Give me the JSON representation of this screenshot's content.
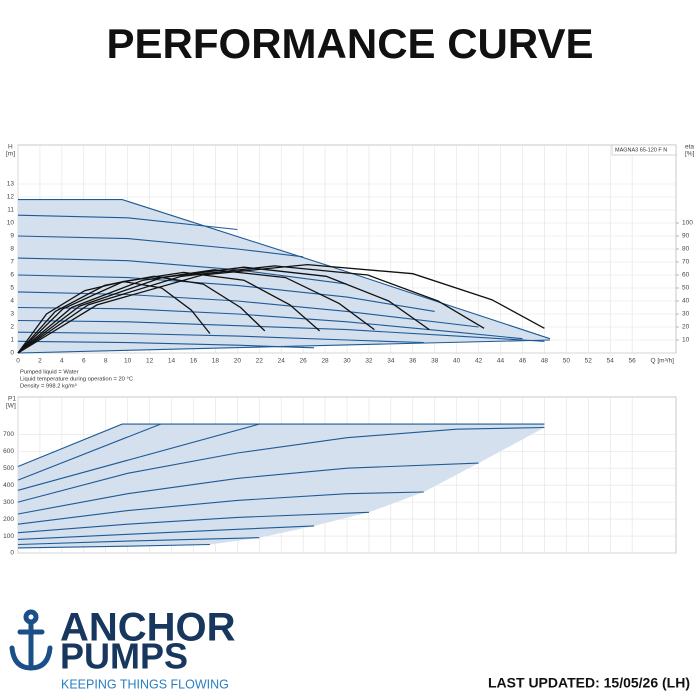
{
  "title": "PERFORMANCE CURVE",
  "chart_data": [
    {
      "type": "line",
      "ylabel": "H",
      "yunit": "[m]",
      "y2label": "eta",
      "y2unit": "[%]",
      "xlabel": "Q [m³/h]",
      "model": "MAGNA3 65-120 F N",
      "annotations": [
        "Pumped liquid = Water",
        "Liquid temperature during operation = 20 °C",
        "Density = 998.2 kg/m³"
      ],
      "xlim": [
        0,
        60
      ],
      "ylim": [
        0,
        16
      ],
      "y2lim": [
        0,
        160
      ],
      "grid": true,
      "xticks": [
        0,
        2,
        4,
        6,
        8,
        10,
        12,
        14,
        16,
        18,
        20,
        22,
        24,
        26,
        28,
        30,
        32,
        34,
        36,
        38,
        40,
        42,
        44,
        46,
        48,
        50,
        52,
        54,
        56
      ],
      "yticks": [
        0,
        1,
        2,
        3,
        4,
        5,
        6,
        7,
        8,
        9,
        10,
        11,
        12,
        13
      ],
      "y2ticks": [
        10,
        20,
        30,
        40,
        50,
        60,
        70,
        80,
        90,
        100
      ],
      "series": [
        {
          "color": "#1f5a96",
          "x": [
            0,
            9.5,
            28,
            48.5
          ],
          "values": [
            11.8,
            11.8,
            6.8,
            1.1
          ]
        },
        {
          "color": "#1f5a96",
          "x": [
            0,
            48.5
          ],
          "values": [
            0,
            1.0
          ]
        },
        {
          "color": "#1f5a96",
          "x": [
            0,
            10,
            20
          ],
          "values": [
            10.6,
            10.4,
            9.5
          ]
        },
        {
          "color": "#1f5a96",
          "x": [
            0,
            10,
            20,
            26
          ],
          "values": [
            9.0,
            8.8,
            8.0,
            7.4
          ]
        },
        {
          "color": "#1f5a96",
          "x": [
            0,
            10,
            20,
            30
          ],
          "values": [
            7.3,
            7.1,
            6.4,
            5.3
          ]
        },
        {
          "color": "#1f5a96",
          "x": [
            0,
            10,
            20,
            30,
            38
          ],
          "values": [
            6.0,
            5.8,
            5.2,
            4.3,
            3.2
          ]
        },
        {
          "color": "#1f5a96",
          "x": [
            0,
            10,
            20,
            30,
            42
          ],
          "values": [
            4.7,
            4.5,
            4.0,
            3.2,
            2.0
          ]
        },
        {
          "color": "#1f5a96",
          "x": [
            0,
            10,
            20,
            30,
            40,
            46
          ],
          "values": [
            3.5,
            3.4,
            3.0,
            2.4,
            1.6,
            1.1
          ]
        },
        {
          "color": "#1f5a96",
          "x": [
            0,
            10,
            20,
            30,
            40,
            48
          ],
          "values": [
            2.5,
            2.4,
            2.1,
            1.8,
            1.3,
            0.9
          ]
        },
        {
          "color": "#1f5a96",
          "x": [
            0,
            10,
            20,
            30,
            37
          ],
          "values": [
            1.6,
            1.5,
            1.3,
            1.0,
            0.8
          ]
        },
        {
          "color": "#1f5a96",
          "x": [
            0,
            10,
            20,
            27
          ],
          "values": [
            0.9,
            0.8,
            0.6,
            0.4
          ]
        },
        {
          "color": "#111111",
          "axis": "y2",
          "x": [
            0,
            2.6,
            6.1,
            9.6,
            13.1,
            15.8,
            17.5
          ],
          "values": [
            0,
            30,
            48,
            55,
            50,
            33,
            15
          ]
        },
        {
          "color": "#111111",
          "axis": "y2",
          "x": [
            0,
            3.4,
            7.9,
            12.4,
            16.9,
            20.3,
            22.5
          ],
          "values": [
            0,
            32,
            52,
            59,
            53,
            35,
            17
          ]
        },
        {
          "color": "#111111",
          "axis": "y2",
          "x": [
            0,
            4.1,
            9.6,
            15.1,
            20.6,
            24.8,
            27.5
          ],
          "values": [
            0,
            34,
            55,
            62,
            56,
            37,
            17
          ]
        },
        {
          "color": "#111111",
          "axis": "y2",
          "x": [
            0,
            4.9,
            11.4,
            17.9,
            24.4,
            29.3,
            32.5
          ],
          "values": [
            0,
            35,
            56,
            64,
            58,
            38,
            18
          ]
        },
        {
          "color": "#111111",
          "axis": "y2",
          "x": [
            0,
            5.6,
            13.1,
            20.6,
            28.1,
            33.8,
            37.5
          ],
          "values": [
            0,
            36,
            58,
            66,
            59,
            40,
            18
          ]
        },
        {
          "color": "#111111",
          "axis": "y2",
          "x": [
            0,
            6.4,
            14.9,
            23.4,
            31.9,
            38.3,
            42.5
          ],
          "values": [
            0,
            37,
            59,
            67,
            60,
            40,
            19
          ]
        },
        {
          "color": "#111111",
          "axis": "y2",
          "x": [
            0,
            7.2,
            16.8,
            26.4,
            36,
            43.2,
            48
          ],
          "values": [
            0,
            37,
            60,
            68,
            61,
            41,
            19
          ]
        }
      ]
    },
    {
      "type": "line",
      "ylabel": "P1",
      "yunit": "[W]",
      "xlim": [
        0,
        60
      ],
      "ylim": [
        0,
        920
      ],
      "grid": true,
      "yticks": [
        0,
        100,
        200,
        300,
        400,
        500,
        600,
        700
      ],
      "series": [
        {
          "color": "#1f5a96",
          "x": [
            0,
            9.5,
            48
          ],
          "values": [
            510,
            760,
            760
          ]
        },
        {
          "color": "#1f5a96",
          "x": [
            0,
            13
          ],
          "values": [
            430,
            760
          ]
        },
        {
          "color": "#1f5a96",
          "x": [
            0,
            22
          ],
          "values": [
            370,
            760
          ]
        },
        {
          "color": "#1f5a96",
          "x": [
            0,
            10,
            20,
            30,
            40,
            48
          ],
          "values": [
            300,
            470,
            590,
            680,
            730,
            740
          ]
        },
        {
          "color": "#1f5a96",
          "x": [
            0,
            10,
            20,
            30,
            42
          ],
          "values": [
            230,
            350,
            440,
            500,
            530
          ]
        },
        {
          "color": "#1f5a96",
          "x": [
            0,
            10,
            20,
            30,
            37
          ],
          "values": [
            170,
            250,
            310,
            350,
            360
          ]
        },
        {
          "color": "#1f5a96",
          "x": [
            0,
            10,
            20,
            32
          ],
          "values": [
            120,
            170,
            210,
            240
          ]
        },
        {
          "color": "#1f5a96",
          "x": [
            0,
            10,
            20,
            27
          ],
          "values": [
            80,
            110,
            140,
            160
          ]
        },
        {
          "color": "#1f5a96",
          "x": [
            0,
            10,
            22
          ],
          "values": [
            50,
            70,
            90
          ]
        },
        {
          "color": "#1f5a96",
          "x": [
            0,
            10,
            17.5
          ],
          "values": [
            30,
            40,
            50
          ]
        }
      ]
    }
  ],
  "logo": {
    "line1": "ANCHOR",
    "line2": "PUMPS",
    "tagline": "KEEPING THINGS FLOWING"
  },
  "last_updated": "LAST UPDATED: 15/05/26 (LH)"
}
